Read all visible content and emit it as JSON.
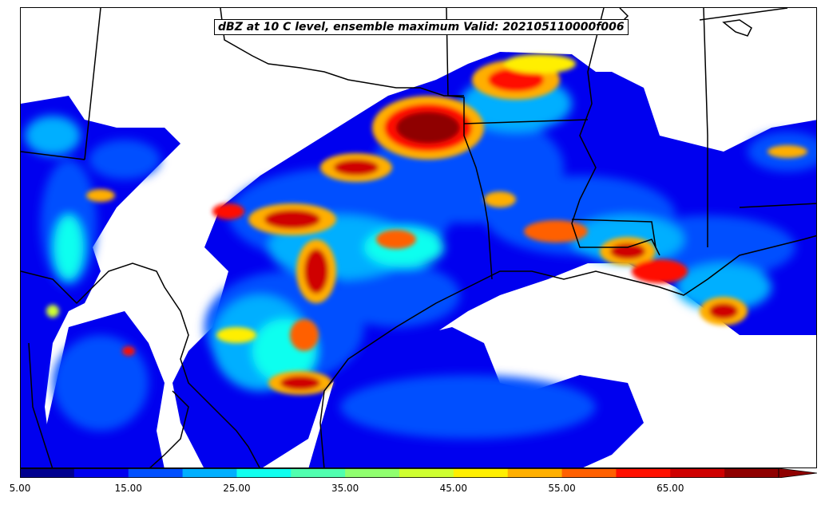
{
  "title": "dBZ at 10 C level, ensemble maximum Valid: 202105110000f006",
  "colorbar": {
    "levels": [
      5,
      10,
      15,
      20,
      25,
      30,
      35,
      40,
      45,
      50,
      55,
      60,
      65,
      70
    ],
    "tick_labels": [
      "5.00",
      "15.00",
      "25.00",
      "35.00",
      "45.00",
      "55.00",
      "65.00"
    ],
    "colors": [
      "#00008f",
      "#0000ef",
      "#0050ff",
      "#00afff",
      "#10ffef",
      "#50ffaf",
      "#90ff6f",
      "#cfff30",
      "#ffef00",
      "#ffaf00",
      "#ff6000",
      "#ff1000",
      "#cf0000",
      "#8f0000"
    ],
    "extend": "max"
  }
}
